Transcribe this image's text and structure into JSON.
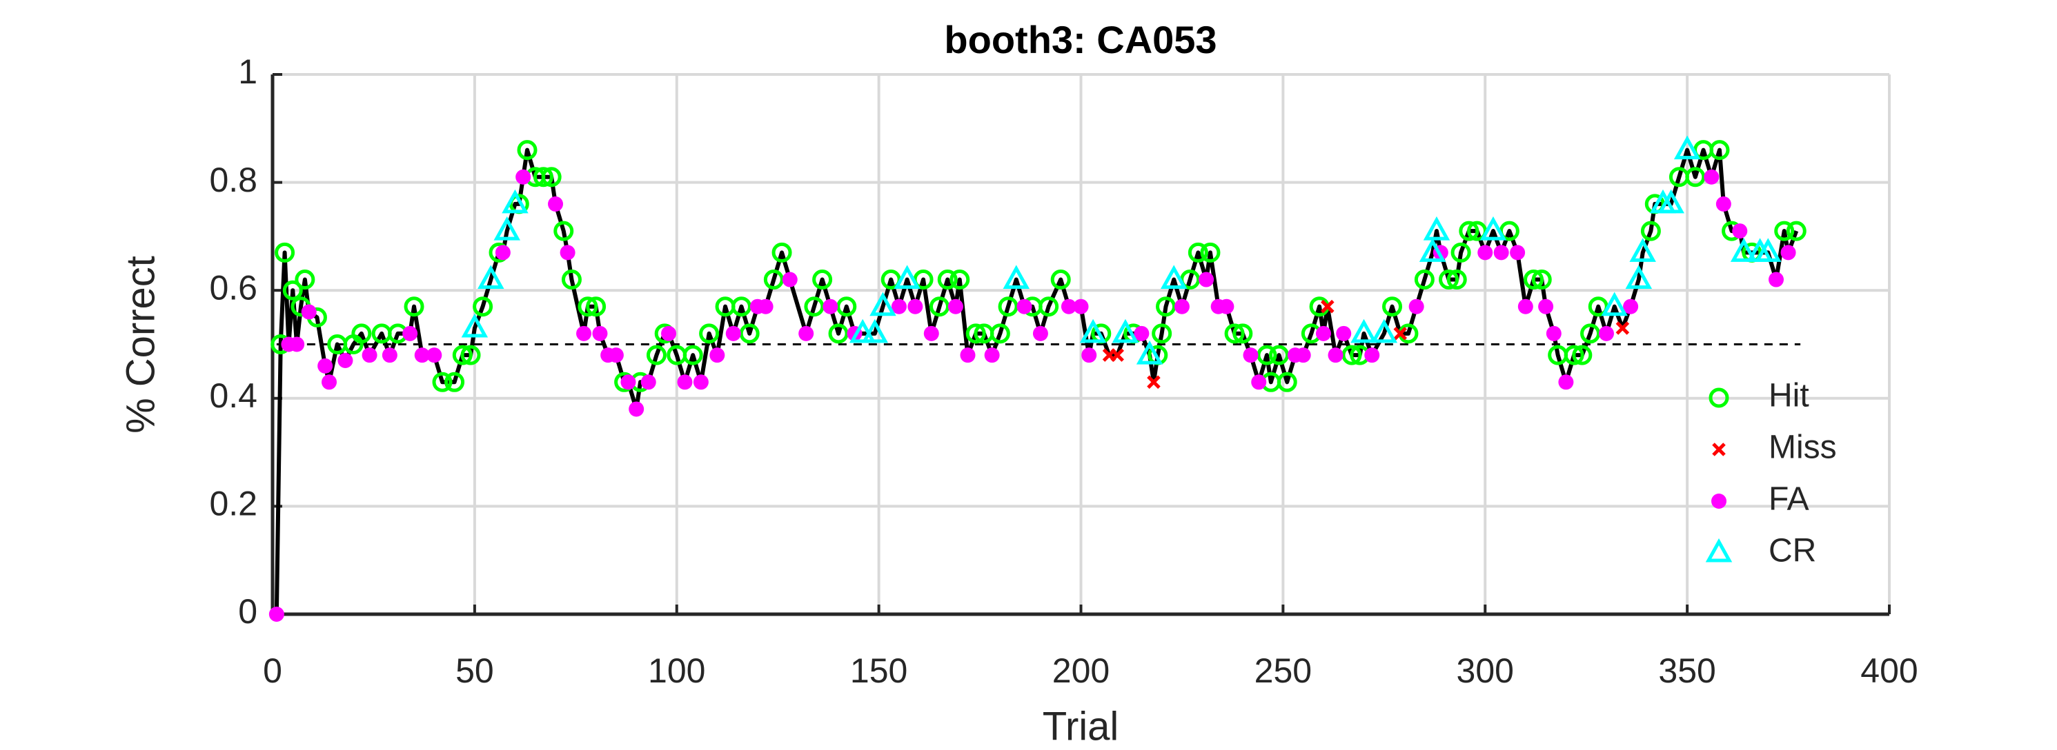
{
  "chart_data": {
    "type": "line",
    "title": "booth3: CA053",
    "xlabel": "Trial",
    "ylabel": "% Correct",
    "xlim": [
      0,
      400
    ],
    "xticks": [
      0,
      50,
      100,
      150,
      200,
      250,
      300,
      350,
      400
    ],
    "ylim": [
      0,
      1
    ],
    "yticks": [
      0,
      0.2,
      0.4,
      0.6,
      0.8,
      1
    ],
    "grid": true,
    "legend": "lower right",
    "trace": {
      "color": "#000000",
      "x": [
        1,
        2,
        3,
        4,
        5,
        6,
        7,
        8,
        9,
        11,
        13,
        14,
        16,
        18,
        20,
        22,
        24,
        27,
        29,
        31,
        34,
        35,
        37,
        40,
        42,
        45,
        47,
        49,
        50,
        52,
        54,
        56,
        57,
        58,
        60,
        61,
        62,
        63,
        65,
        67,
        69,
        70,
        72,
        73,
        74,
        77,
        78,
        80,
        81,
        83,
        85,
        87,
        88,
        90,
        91,
        93,
        95,
        97,
        98,
        100,
        102,
        104,
        106,
        108,
        110,
        112,
        114,
        116,
        118,
        120,
        122,
        124,
        126,
        128,
        132,
        134,
        136,
        138,
        140,
        142,
        144,
        146,
        149,
        151,
        153,
        155,
        157,
        159,
        161,
        163,
        165,
        167,
        169,
        170,
        172,
        174,
        176,
        178,
        180,
        182,
        184,
        186,
        188,
        190,
        192,
        195,
        197,
        200,
        202,
        203,
        205,
        207,
        209,
        211,
        213,
        215,
        217,
        218,
        219,
        220,
        221,
        223,
        225,
        227,
        229,
        231,
        232,
        234,
        236,
        238,
        240,
        242,
        244,
        246,
        247,
        249,
        251,
        253,
        255,
        257,
        259,
        260,
        261,
        263,
        265,
        267,
        269,
        270,
        272,
        275,
        277,
        279,
        281,
        283,
        285,
        287,
        288,
        289,
        291,
        293,
        294,
        296,
        298,
        300,
        302,
        304,
        306,
        308,
        310,
        312,
        314,
        315,
        317,
        318,
        320,
        322,
        324,
        326,
        328,
        330,
        332,
        334,
        336,
        338,
        339,
        341,
        342,
        344,
        346,
        348,
        350,
        352,
        354,
        356,
        358,
        359,
        361,
        363,
        364,
        366,
        368,
        370,
        372,
        374,
        375,
        377
      ],
      "values": [
        0,
        0.5,
        0.67,
        0.5,
        0.6,
        0.5,
        0.57,
        0.62,
        0.56,
        0.55,
        0.46,
        0.43,
        0.5,
        0.47,
        0.5,
        0.52,
        0.48,
        0.52,
        0.48,
        0.52,
        0.52,
        0.57,
        0.48,
        0.48,
        0.43,
        0.43,
        0.48,
        0.48,
        0.53,
        0.57,
        0.62,
        0.67,
        0.67,
        0.71,
        0.76,
        0.76,
        0.81,
        0.86,
        0.81,
        0.81,
        0.81,
        0.76,
        0.71,
        0.67,
        0.62,
        0.52,
        0.57,
        0.57,
        0.52,
        0.48,
        0.48,
        0.43,
        0.43,
        0.38,
        0.43,
        0.43,
        0.48,
        0.52,
        0.52,
        0.48,
        0.43,
        0.48,
        0.43,
        0.52,
        0.48,
        0.57,
        0.52,
        0.57,
        0.52,
        0.57,
        0.57,
        0.62,
        0.67,
        0.62,
        0.52,
        0.57,
        0.62,
        0.57,
        0.52,
        0.57,
        0.52,
        0.52,
        0.52,
        0.57,
        0.62,
        0.57,
        0.62,
        0.57,
        0.62,
        0.52,
        0.57,
        0.62,
        0.57,
        0.62,
        0.48,
        0.52,
        0.52,
        0.48,
        0.52,
        0.57,
        0.62,
        0.57,
        0.57,
        0.52,
        0.57,
        0.62,
        0.57,
        0.57,
        0.48,
        0.52,
        0.52,
        0.48,
        0.48,
        0.52,
        0.52,
        0.52,
        0.48,
        0.43,
        0.48,
        0.52,
        0.57,
        0.62,
        0.57,
        0.62,
        0.67,
        0.62,
        0.67,
        0.57,
        0.57,
        0.52,
        0.52,
        0.48,
        0.43,
        0.48,
        0.43,
        0.48,
        0.43,
        0.48,
        0.48,
        0.52,
        0.57,
        0.52,
        0.57,
        0.48,
        0.52,
        0.48,
        0.48,
        0.52,
        0.48,
        0.52,
        0.57,
        0.52,
        0.52,
        0.57,
        0.62,
        0.67,
        0.71,
        0.67,
        0.62,
        0.62,
        0.67,
        0.71,
        0.71,
        0.67,
        0.71,
        0.67,
        0.71,
        0.67,
        0.57,
        0.62,
        0.62,
        0.57,
        0.52,
        0.48,
        0.43,
        0.48,
        0.48,
        0.52,
        0.57,
        0.52,
        0.57,
        0.53,
        0.57,
        0.62,
        0.67,
        0.71,
        0.76,
        0.76,
        0.76,
        0.81,
        0.86,
        0.81,
        0.86,
        0.81,
        0.86,
        0.76,
        0.71,
        0.71,
        0.67,
        0.67,
        0.67,
        0.67,
        0.62,
        0.71,
        0.67,
        0.71
      ]
    },
    "reference": {
      "color": "#000000",
      "style": "dashed",
      "x": [
        1,
        378
      ],
      "values": [
        0.5,
        0.5
      ]
    },
    "series": [
      {
        "name": "Hit",
        "color": "#00ff00",
        "marker": "circle",
        "x": [
          2,
          3,
          5,
          7,
          8,
          11,
          16,
          20,
          22,
          27,
          31,
          35,
          42,
          45,
          47,
          49,
          52,
          56,
          61,
          63,
          65,
          67,
          69,
          72,
          74,
          78,
          80,
          87,
          91,
          95,
          97,
          100,
          104,
          108,
          112,
          116,
          118,
          124,
          126,
          134,
          136,
          140,
          142,
          153,
          161,
          165,
          167,
          170,
          174,
          176,
          180,
          182,
          188,
          192,
          195,
          205,
          213,
          219,
          220,
          221,
          227,
          229,
          232,
          238,
          240,
          246,
          247,
          249,
          251,
          257,
          259,
          267,
          269,
          277,
          281,
          285,
          291,
          293,
          294,
          296,
          298,
          306,
          312,
          314,
          318,
          322,
          324,
          326,
          328,
          341,
          342,
          348,
          352,
          354,
          358,
          361,
          366,
          374,
          377
        ],
        "values": [
          0.5,
          0.67,
          0.6,
          0.57,
          0.62,
          0.55,
          0.5,
          0.5,
          0.52,
          0.52,
          0.52,
          0.57,
          0.43,
          0.43,
          0.48,
          0.48,
          0.57,
          0.67,
          0.76,
          0.86,
          0.81,
          0.81,
          0.81,
          0.71,
          0.62,
          0.57,
          0.57,
          0.43,
          0.43,
          0.48,
          0.52,
          0.48,
          0.48,
          0.52,
          0.57,
          0.57,
          0.52,
          0.62,
          0.67,
          0.57,
          0.62,
          0.52,
          0.57,
          0.62,
          0.62,
          0.57,
          0.62,
          0.62,
          0.52,
          0.52,
          0.52,
          0.57,
          0.57,
          0.57,
          0.62,
          0.52,
          0.52,
          0.48,
          0.52,
          0.57,
          0.62,
          0.67,
          0.67,
          0.52,
          0.52,
          0.48,
          0.43,
          0.48,
          0.43,
          0.52,
          0.57,
          0.48,
          0.48,
          0.57,
          0.52,
          0.62,
          0.62,
          0.62,
          0.67,
          0.71,
          0.71,
          0.71,
          0.62,
          0.62,
          0.48,
          0.48,
          0.48,
          0.52,
          0.57,
          0.71,
          0.76,
          0.81,
          0.81,
          0.86,
          0.86,
          0.71,
          0.67,
          0.71,
          0.71
        ]
      },
      {
        "name": "Miss",
        "color": "#ff0000",
        "marker": "x",
        "x": [
          207,
          209,
          218,
          261,
          279,
          334
        ],
        "values": [
          0.48,
          0.48,
          0.43,
          0.57,
          0.52,
          0.53
        ]
      },
      {
        "name": "FA",
        "color": "#ff00ff",
        "marker": "dot",
        "x": [
          1,
          4,
          6,
          9,
          13,
          14,
          18,
          24,
          29,
          34,
          37,
          40,
          57,
          62,
          70,
          73,
          77,
          81,
          83,
          85,
          88,
          90,
          93,
          98,
          102,
          106,
          110,
          114,
          120,
          122,
          128,
          132,
          138,
          144,
          155,
          159,
          163,
          169,
          172,
          178,
          186,
          190,
          197,
          200,
          202,
          215,
          225,
          231,
          234,
          236,
          242,
          244,
          253,
          255,
          260,
          263,
          265,
          272,
          283,
          289,
          300,
          304,
          308,
          310,
          315,
          317,
          320,
          330,
          336,
          356,
          359,
          363,
          372,
          375
        ],
        "values": [
          0,
          0.5,
          0.5,
          0.56,
          0.46,
          0.43,
          0.47,
          0.48,
          0.48,
          0.52,
          0.48,
          0.48,
          0.67,
          0.81,
          0.76,
          0.67,
          0.52,
          0.52,
          0.48,
          0.48,
          0.43,
          0.38,
          0.43,
          0.52,
          0.43,
          0.43,
          0.48,
          0.52,
          0.57,
          0.57,
          0.62,
          0.52,
          0.57,
          0.52,
          0.57,
          0.57,
          0.52,
          0.57,
          0.48,
          0.48,
          0.57,
          0.52,
          0.57,
          0.57,
          0.48,
          0.52,
          0.57,
          0.62,
          0.57,
          0.57,
          0.48,
          0.43,
          0.48,
          0.48,
          0.52,
          0.48,
          0.52,
          0.48,
          0.57,
          0.67,
          0.67,
          0.67,
          0.67,
          0.57,
          0.57,
          0.52,
          0.43,
          0.52,
          0.57,
          0.81,
          0.76,
          0.71,
          0.62,
          0.67
        ]
      },
      {
        "name": "CR",
        "color": "#00ffff",
        "marker": "triangle",
        "x": [
          50,
          54,
          58,
          60,
          146,
          149,
          151,
          157,
          184,
          203,
          211,
          217,
          223,
          270,
          275,
          287,
          288,
          302,
          332,
          338,
          339,
          344,
          346,
          350,
          364,
          368,
          370
        ],
        "values": [
          0.53,
          0.62,
          0.71,
          0.76,
          0.52,
          0.52,
          0.57,
          0.62,
          0.62,
          0.52,
          0.52,
          0.48,
          0.62,
          0.52,
          0.52,
          0.67,
          0.71,
          0.71,
          0.57,
          0.62,
          0.67,
          0.76,
          0.76,
          0.86,
          0.67,
          0.67,
          0.67
        ]
      }
    ]
  }
}
